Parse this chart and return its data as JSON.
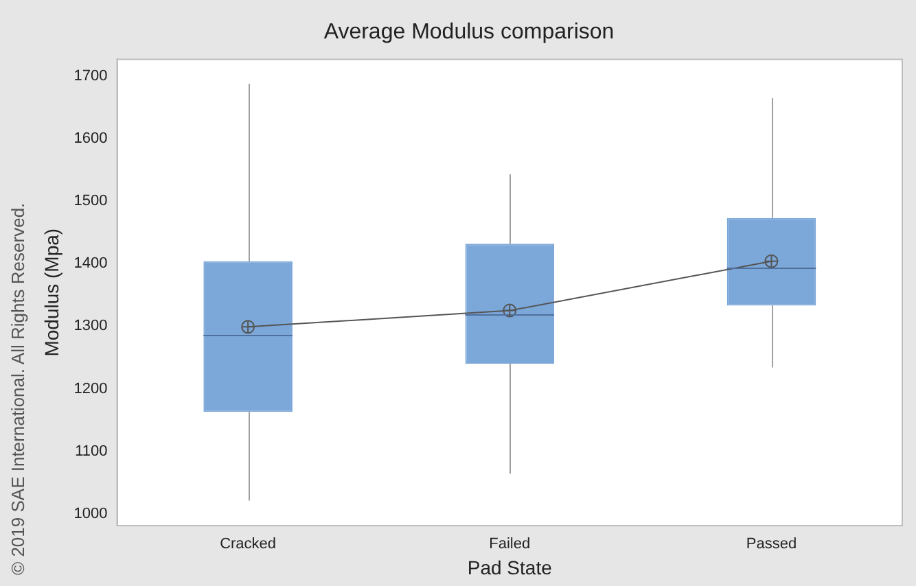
{
  "chart_data": {
    "type": "box",
    "title": "Average Modulus comparison",
    "xlabel": "Pad State",
    "ylabel": "Modulus (Mpa)",
    "categories": [
      "Cracked",
      "Failed",
      "Passed"
    ],
    "series": [
      {
        "type": "box",
        "color": "#7ba7d9",
        "boxes": [
          {
            "low": 1021,
            "q1": 1163,
            "median": 1286,
            "q3": 1404,
            "high": 1688
          },
          {
            "low": 1064,
            "q1": 1240,
            "median": 1318,
            "q3": 1432,
            "high": 1543
          },
          {
            "low": 1234,
            "q1": 1333,
            "median": 1393,
            "q3": 1473,
            "high": 1665
          }
        ]
      },
      {
        "type": "line",
        "color": "#555555",
        "values": [
          1299,
          1325,
          1404
        ],
        "marker": "circle"
      }
    ],
    "ylim": [
      981,
      1727
    ],
    "yticks": [
      1000,
      1100,
      1200,
      1300,
      1400,
      1500,
      1600,
      1700
    ],
    "grid": false,
    "legend": false,
    "annotations": [
      "© 2019 SAE International. All Rights Reserved."
    ]
  }
}
